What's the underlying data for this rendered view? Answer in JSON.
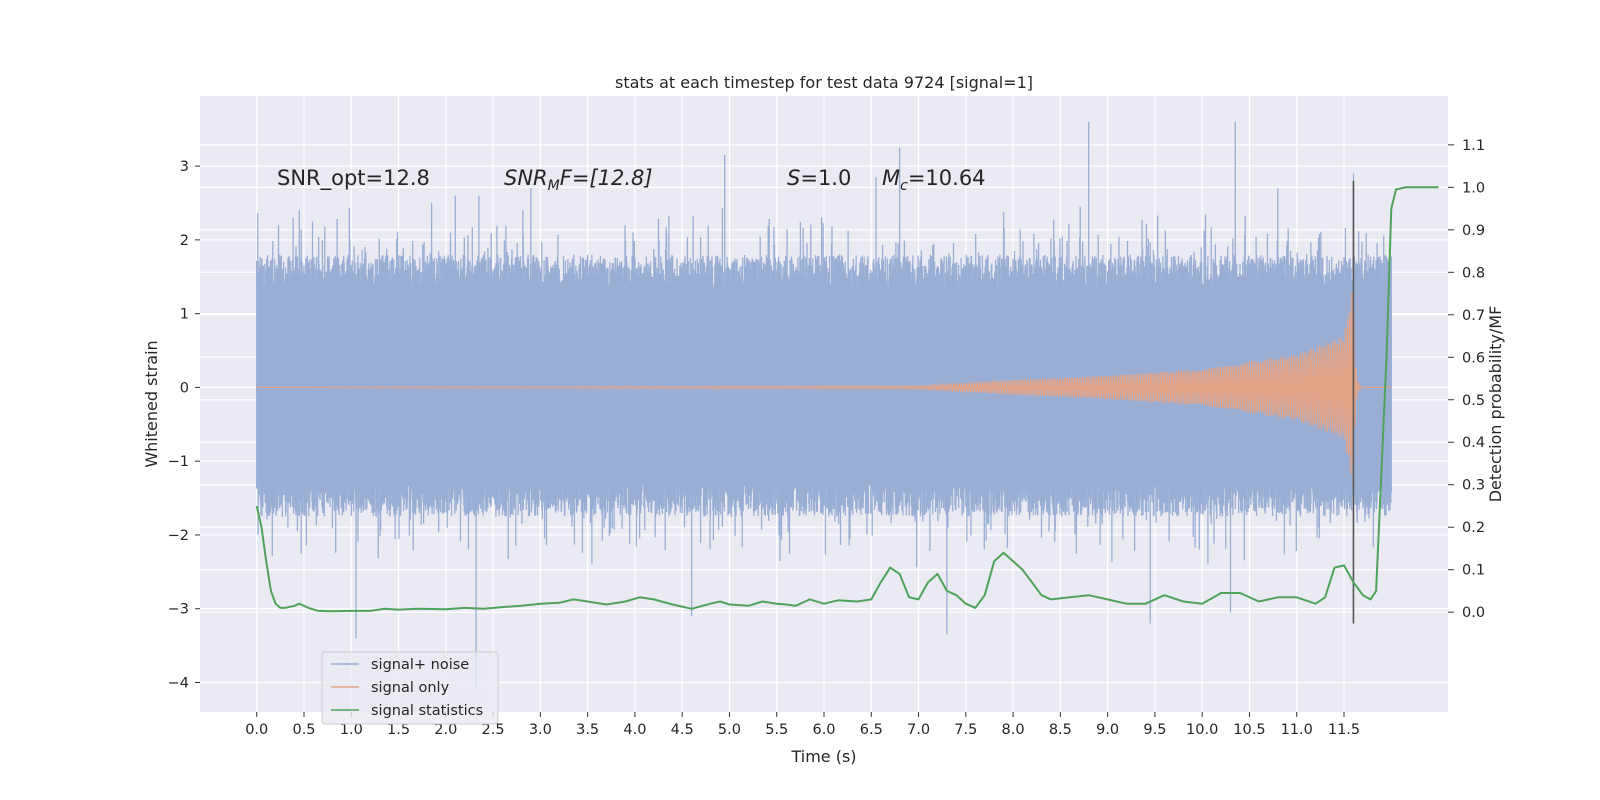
{
  "chart_data": {
    "type": "line",
    "title": "stats at each timestep for test data 9724 [signal=1]",
    "xlabel": "Time (s)",
    "ylabel_left": "Whitened strain",
    "ylabel_right": "Detection probability/MF",
    "xlim": [
      -0.6,
      12.6
    ],
    "ylim_left": [
      -4.4,
      3.95
    ],
    "ylim_right": [
      -0.235,
      1.215
    ],
    "x_ticks": [
      0.0,
      0.5,
      1.0,
      1.5,
      2.0,
      2.5,
      3.0,
      3.5,
      4.0,
      4.5,
      5.0,
      5.5,
      6.0,
      6.5,
      7.0,
      7.5,
      8.0,
      8.5,
      9.0,
      9.5,
      10.0,
      10.5,
      11.0,
      11.5
    ],
    "x_tick_labels": [
      "0.0",
      "0.5",
      "1.0",
      "1.5",
      "2.0",
      "2.5",
      "3.0",
      "3.5",
      "4.0",
      "4.5",
      "5.0",
      "5.5",
      "6.0",
      "6.5",
      "7.0",
      "7.5",
      "8.0",
      "8.5",
      "9.0",
      "9.5",
      "10.0",
      "10.5",
      "11.0",
      "11.5"
    ],
    "y_left_ticks": [
      3,
      2,
      1,
      0,
      -1,
      -2,
      -3,
      -4
    ],
    "y_left_tick_labels": [
      "3",
      "2",
      "1",
      "0",
      "−1",
      "−2",
      "−3",
      "−4"
    ],
    "y_right_ticks": [
      1.1,
      1.0,
      0.9,
      0.8,
      0.7,
      0.6,
      0.5,
      0.4,
      0.3,
      0.2,
      0.1,
      0.0
    ],
    "y_right_tick_labels": [
      "1.1",
      "1.0",
      "0.9",
      "0.8",
      "0.7",
      "0.6",
      "0.5",
      "0.4",
      "0.3",
      "0.2",
      "0.1",
      "0.0"
    ],
    "grid": true,
    "legend_position": "lower-left",
    "annotations": {
      "snr_opt": "SNR_opt=12.8",
      "snr_mf_main": "SNR",
      "snr_mf_sub": "M",
      "snr_mf_rest": "F=[12.8]",
      "s_italic": "S",
      "s_rest": "=1.0",
      "mc_main": "M",
      "mc_sub": "c",
      "mc_rest": "=10.64"
    },
    "series": [
      {
        "name": "signal+ noise",
        "color": "#9aaed4",
        "kind": "noise",
        "x_range": [
          0.0,
          12.0
        ],
        "core_band": [
          -0.95,
          1.0
        ],
        "typical_envelope": [
          -1.5,
          1.55
        ],
        "peaks": [
          {
            "x": 0.0,
            "y": 1.2
          },
          {
            "x": 0.45,
            "y": 2.4
          },
          {
            "x": 1.05,
            "y": -3.4
          },
          {
            "x": 1.85,
            "y": 2.5
          },
          {
            "x": 2.05,
            "y": 2.1
          },
          {
            "x": 2.1,
            "y": 2.6
          },
          {
            "x": 2.32,
            "y": -4.1
          },
          {
            "x": 2.35,
            "y": 2.6
          },
          {
            "x": 2.9,
            "y": 2.7
          },
          {
            "x": 4.95,
            "y": 3.15
          },
          {
            "x": 4.6,
            "y": -3.1
          },
          {
            "x": 6.55,
            "y": 2.85
          },
          {
            "x": 6.8,
            "y": 3.25
          },
          {
            "x": 7.3,
            "y": -3.35
          },
          {
            "x": 8.8,
            "y": 3.6
          },
          {
            "x": 9.45,
            "y": -3.2
          },
          {
            "x": 10.35,
            "y": 3.6
          },
          {
            "x": 10.3,
            "y": -3.05
          },
          {
            "x": 10.8,
            "y": 2.7
          },
          {
            "x": 11.6,
            "y": 2.9
          }
        ]
      },
      {
        "name": "signal only",
        "color": "#e4a487",
        "kind": "chirp",
        "x_range": [
          0.0,
          12.0
        ],
        "merger_time": 11.6,
        "amplitude_samples": [
          {
            "x": 0.0,
            "a": 0.0
          },
          {
            "x": 7.0,
            "a": 0.02
          },
          {
            "x": 8.0,
            "a": 0.1
          },
          {
            "x": 9.0,
            "a": 0.16
          },
          {
            "x": 10.0,
            "a": 0.25
          },
          {
            "x": 11.0,
            "a": 0.45
          },
          {
            "x": 11.5,
            "a": 0.7
          },
          {
            "x": 11.6,
            "a": 1.4
          }
        ]
      },
      {
        "name": "signal statistics",
        "color": "#4fa35a",
        "axis": "right",
        "points": [
          [
            0.0,
            0.25
          ],
          [
            0.05,
            0.2
          ],
          [
            0.1,
            0.12
          ],
          [
            0.15,
            0.05
          ],
          [
            0.2,
            0.02
          ],
          [
            0.25,
            0.01
          ],
          [
            0.3,
            0.01
          ],
          [
            0.4,
            0.015
          ],
          [
            0.45,
            0.02
          ],
          [
            0.55,
            0.01
          ],
          [
            0.65,
            0.003
          ],
          [
            0.8,
            0.002
          ],
          [
            1.0,
            0.003
          ],
          [
            1.2,
            0.003
          ],
          [
            1.35,
            0.008
          ],
          [
            1.5,
            0.006
          ],
          [
            1.7,
            0.008
          ],
          [
            2.0,
            0.007
          ],
          [
            2.2,
            0.01
          ],
          [
            2.4,
            0.008
          ],
          [
            2.6,
            0.012
          ],
          [
            2.8,
            0.015
          ],
          [
            3.0,
            0.02
          ],
          [
            3.2,
            0.022
          ],
          [
            3.35,
            0.03
          ],
          [
            3.5,
            0.025
          ],
          [
            3.7,
            0.018
          ],
          [
            3.9,
            0.025
          ],
          [
            4.05,
            0.035
          ],
          [
            4.2,
            0.03
          ],
          [
            4.4,
            0.018
          ],
          [
            4.6,
            0.008
          ],
          [
            4.8,
            0.02
          ],
          [
            4.9,
            0.025
          ],
          [
            5.0,
            0.018
          ],
          [
            5.2,
            0.015
          ],
          [
            5.35,
            0.025
          ],
          [
            5.5,
            0.02
          ],
          [
            5.6,
            0.018
          ],
          [
            5.7,
            0.015
          ],
          [
            5.85,
            0.03
          ],
          [
            6.0,
            0.02
          ],
          [
            6.15,
            0.028
          ],
          [
            6.35,
            0.025
          ],
          [
            6.5,
            0.03
          ],
          [
            6.6,
            0.07
          ],
          [
            6.7,
            0.105
          ],
          [
            6.8,
            0.09
          ],
          [
            6.9,
            0.035
          ],
          [
            7.0,
            0.03
          ],
          [
            7.1,
            0.07
          ],
          [
            7.2,
            0.09
          ],
          [
            7.3,
            0.05
          ],
          [
            7.4,
            0.04
          ],
          [
            7.5,
            0.02
          ],
          [
            7.6,
            0.01
          ],
          [
            7.7,
            0.04
          ],
          [
            7.8,
            0.12
          ],
          [
            7.9,
            0.14
          ],
          [
            8.0,
            0.12
          ],
          [
            8.1,
            0.1
          ],
          [
            8.2,
            0.07
          ],
          [
            8.3,
            0.04
          ],
          [
            8.4,
            0.03
          ],
          [
            8.6,
            0.035
          ],
          [
            8.8,
            0.04
          ],
          [
            9.0,
            0.03
          ],
          [
            9.2,
            0.02
          ],
          [
            9.4,
            0.02
          ],
          [
            9.6,
            0.04
          ],
          [
            9.8,
            0.025
          ],
          [
            10.0,
            0.02
          ],
          [
            10.2,
            0.045
          ],
          [
            10.4,
            0.045
          ],
          [
            10.6,
            0.025
          ],
          [
            10.8,
            0.035
          ],
          [
            11.0,
            0.035
          ],
          [
            11.2,
            0.02
          ],
          [
            11.3,
            0.035
          ],
          [
            11.4,
            0.105
          ],
          [
            11.5,
            0.11
          ],
          [
            11.6,
            0.07
          ],
          [
            11.7,
            0.04
          ],
          [
            11.78,
            0.03
          ],
          [
            11.84,
            0.05
          ],
          [
            11.9,
            0.35
          ],
          [
            11.95,
            0.6
          ],
          [
            12.0,
            0.95
          ],
          [
            12.05,
            0.995
          ],
          [
            12.15,
            1.0
          ],
          [
            12.5,
            1.0
          ]
        ]
      }
    ],
    "vertical_marker": {
      "x": 11.6,
      "color": "#555555",
      "y_from": 2.8,
      "y_to": -3.2
    }
  }
}
